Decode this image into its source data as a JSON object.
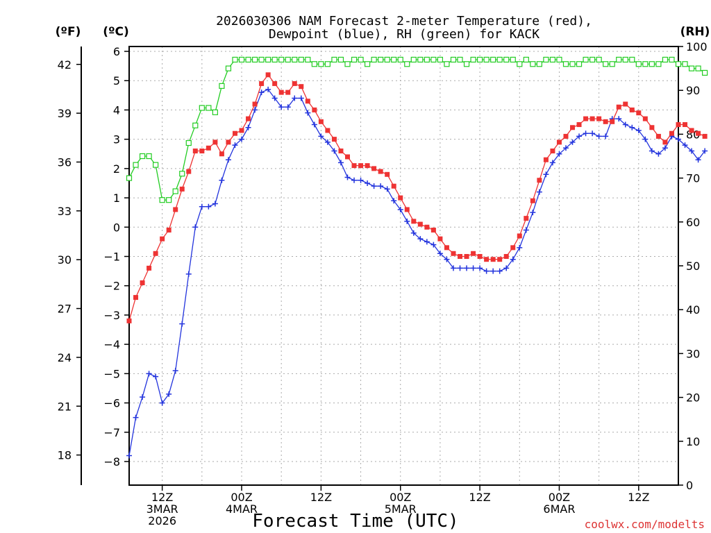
{
  "chart_data": {
    "type": "line",
    "title_lines": [
      "2026030306 NAM Forecast 2-meter Temperature (red),",
      "Dewpoint (blue), RH (green) for KACK"
    ],
    "xlabel": "Forecast Time (UTC)",
    "credit": "coolwx.com/modelts",
    "units": {
      "fahrenheit": "(ºF)",
      "celsius": "(ºC)",
      "rh": "(RH)"
    },
    "x_hour_range": [
      7,
      90
    ],
    "x_ticks": [
      {
        "hour": 12,
        "lines": [
          "12Z",
          "3MAR",
          "2026"
        ]
      },
      {
        "hour": 24,
        "lines": [
          "00Z",
          "4MAR"
        ]
      },
      {
        "hour": 36,
        "lines": [
          "12Z"
        ]
      },
      {
        "hour": 48,
        "lines": [
          "00Z",
          "5MAR"
        ]
      },
      {
        "hour": 60,
        "lines": [
          "12Z"
        ]
      },
      {
        "hour": 72,
        "lines": [
          "00Z",
          "6MAR"
        ]
      },
      {
        "hour": 84,
        "lines": [
          "12Z"
        ]
      }
    ],
    "celsius_axis": {
      "range": [
        -8.8,
        6.2
      ],
      "ticks": [
        "-8",
        "-7",
        "-6",
        "-5",
        "-4",
        "-3",
        "-2",
        "-1",
        "0",
        "1",
        "2",
        "3",
        "4",
        "5",
        "6"
      ]
    },
    "fahrenheit_axis": {
      "ticks": [
        "18",
        "21",
        "24",
        "27",
        "30",
        "33",
        "36",
        "39",
        "42"
      ]
    },
    "rh_axis": {
      "range": [
        0,
        100
      ],
      "ticks": [
        "0",
        "10",
        "20",
        "30",
        "40",
        "50",
        "60",
        "70",
        "80",
        "90",
        "100"
      ]
    },
    "colors": {
      "temperature": "#ee3333",
      "dewpoint": "#2233dd",
      "rh": "#22cc22",
      "grid": "#aaaaaa",
      "credit": "#dd3333"
    },
    "series": [
      {
        "name": "Temperature",
        "unit": "C",
        "marker": "square",
        "values": [
          -3.2,
          -2.4,
          -1.9,
          -1.4,
          -0.9,
          -0.4,
          -0.1,
          0.6,
          1.3,
          1.9,
          2.6,
          2.6,
          2.7,
          2.9,
          2.5,
          2.9,
          3.2,
          3.3,
          3.7,
          4.2,
          4.9,
          5.2,
          4.9,
          4.6,
          4.6,
          4.9,
          4.8,
          4.3,
          4.0,
          3.6,
          3.3,
          3.0,
          2.6,
          2.4,
          2.1,
          2.1,
          2.1,
          2.0,
          1.9,
          1.8,
          1.4,
          1.0,
          0.6,
          0.2,
          0.1,
          0.0,
          -0.1,
          -0.4,
          -0.7,
          -0.9,
          -1.0,
          -1.0,
          -0.9,
          -1.0,
          -1.1,
          -1.1,
          -1.1,
          -1.0,
          -0.7,
          -0.3,
          0.3,
          0.9,
          1.6,
          2.3,
          2.6,
          2.9,
          3.1,
          3.4,
          3.5,
          3.7,
          3.7,
          3.7,
          3.6,
          3.6,
          4.1,
          4.2,
          4.0,
          3.9,
          3.7,
          3.4,
          3.1,
          2.9,
          3.2,
          3.5,
          3.5,
          3.3,
          3.2,
          3.1
        ]
      },
      {
        "name": "Dewpoint",
        "unit": "C",
        "marker": "plus",
        "values": [
          -7.8,
          -6.5,
          -5.8,
          -5.0,
          -5.1,
          -6.0,
          -5.7,
          -4.9,
          -3.3,
          -1.6,
          -0.0,
          0.7,
          0.7,
          0.8,
          1.6,
          2.3,
          2.8,
          3.0,
          3.4,
          4.0,
          4.6,
          4.7,
          4.4,
          4.1,
          4.1,
          4.4,
          4.4,
          3.9,
          3.5,
          3.1,
          2.9,
          2.6,
          2.2,
          1.7,
          1.6,
          1.6,
          1.5,
          1.4,
          1.4,
          1.3,
          0.9,
          0.6,
          0.2,
          -0.2,
          -0.4,
          -0.5,
          -0.6,
          -0.9,
          -1.1,
          -1.4,
          -1.4,
          -1.4,
          -1.4,
          -1.4,
          -1.5,
          -1.5,
          -1.5,
          -1.4,
          -1.1,
          -0.7,
          -0.1,
          0.5,
          1.2,
          1.8,
          2.2,
          2.5,
          2.7,
          2.9,
          3.1,
          3.2,
          3.2,
          3.1,
          3.1,
          3.7,
          3.7,
          3.5,
          3.4,
          3.3,
          3.0,
          2.6,
          2.5,
          2.7,
          3.1,
          3.0,
          2.8,
          2.6,
          2.3,
          2.6
        ]
      },
      {
        "name": "RH",
        "unit": "%",
        "marker": "open-square",
        "values": [
          70,
          73,
          75,
          75,
          73,
          65,
          65,
          67,
          71,
          78,
          82,
          86,
          86,
          85,
          91,
          95,
          97,
          97,
          97,
          97,
          97,
          97,
          97,
          97,
          97,
          97,
          97,
          97,
          96,
          96,
          96,
          97,
          97,
          96,
          97,
          97,
          96,
          97,
          97,
          97,
          97,
          97,
          96,
          97,
          97,
          97,
          97,
          97,
          96,
          97,
          97,
          96,
          97,
          97,
          97,
          97,
          97,
          97,
          97,
          96,
          97,
          96,
          96,
          97,
          97,
          97,
          96,
          96,
          96,
          97,
          97,
          97,
          96,
          96,
          97,
          97,
          97,
          96,
          96,
          96,
          96,
          97,
          97,
          96,
          96,
          95,
          95,
          94
        ]
      }
    ]
  }
}
